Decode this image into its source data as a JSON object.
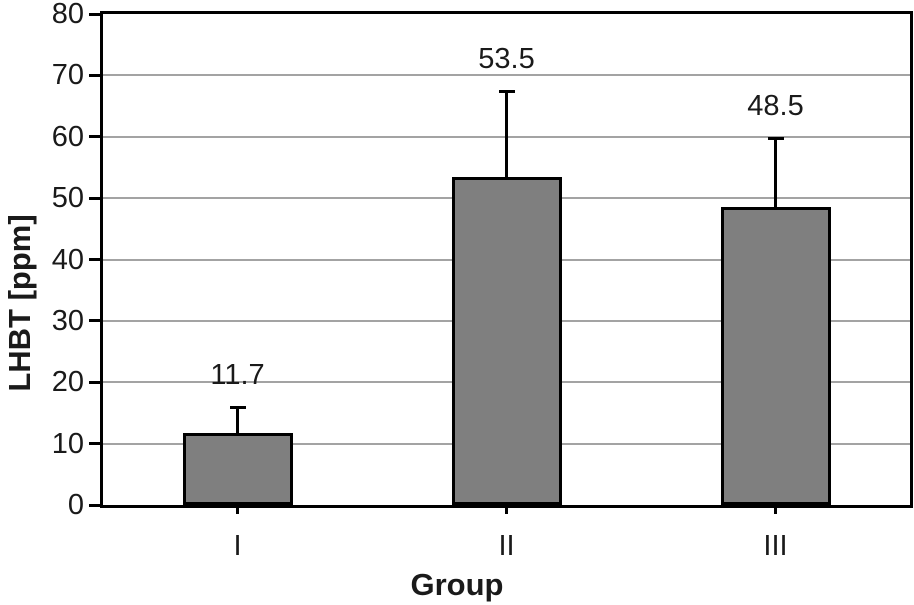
{
  "chart_data": {
    "type": "bar",
    "title": "",
    "xlabel": "Group",
    "ylabel": "LHBT [ppm]",
    "categories": [
      "I",
      "II",
      "III"
    ],
    "values": [
      11.7,
      53.5,
      48.5
    ],
    "error_plus": [
      4.4,
      14.1,
      11.5
    ],
    "data_labels": [
      "11.7",
      "53.5",
      "48.5"
    ],
    "ylim": [
      0,
      80
    ],
    "yticks": [
      0,
      10,
      20,
      30,
      40,
      50,
      60,
      70,
      80
    ],
    "grid": "horizontal",
    "legend": "none",
    "colors": {
      "bar_fill": "#7f7f7f",
      "bar_border": "#000000",
      "gridline": "#a3a3a3",
      "axis_frame": "#000000",
      "text": "#1a1a1a",
      "background": "#ffffff"
    }
  }
}
